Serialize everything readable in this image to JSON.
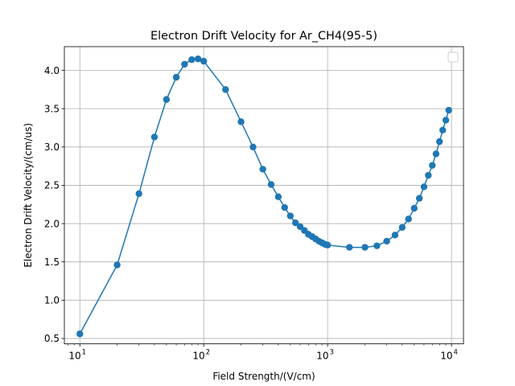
{
  "chart_data": {
    "type": "line",
    "title": "Electron Drift Velocity for Ar_CH4(95-5)",
    "xlabel": "Field Strength/(V/cm)",
    "ylabel": "Electron Drift Velocity/(cm/us)",
    "xscale": "log",
    "xlim": [
      7.5,
      12500
    ],
    "ylim": [
      0.43,
      4.31
    ],
    "grid": true,
    "legend": "top-right (empty)",
    "line_color": "#1f77b4",
    "marker": "circle",
    "x_ticks": [
      {
        "value": 10,
        "base": "10",
        "exp": "1"
      },
      {
        "value": 100,
        "base": "10",
        "exp": "2"
      },
      {
        "value": 1000,
        "base": "10",
        "exp": "3"
      },
      {
        "value": 10000,
        "base": "10",
        "exp": "4"
      }
    ],
    "y_ticks": [
      {
        "value": 0.5,
        "label": "0.5"
      },
      {
        "value": 1.0,
        "label": "1.0"
      },
      {
        "value": 1.5,
        "label": "1.5"
      },
      {
        "value": 2.0,
        "label": "2.0"
      },
      {
        "value": 2.5,
        "label": "2.5"
      },
      {
        "value": 3.0,
        "label": "3.0"
      },
      {
        "value": 3.5,
        "label": "3.5"
      },
      {
        "value": 4.0,
        "label": "4.0"
      }
    ],
    "series": [
      {
        "x": [
          10,
          20,
          30,
          40,
          50,
          60,
          70,
          80,
          90,
          100,
          150,
          200,
          250,
          300,
          350,
          400,
          450,
          500,
          550,
          600,
          650,
          700,
          750,
          800,
          850,
          900,
          950,
          1000,
          1500,
          2000,
          2500,
          3000,
          3500,
          4000,
          4500,
          5000,
          5500,
          6000,
          6500,
          7000,
          7500,
          8000,
          8500,
          9000,
          9500
        ],
        "y": [
          0.56,
          1.46,
          2.39,
          3.13,
          3.62,
          3.91,
          4.08,
          4.14,
          4.15,
          4.12,
          3.75,
          3.33,
          3.0,
          2.71,
          2.51,
          2.35,
          2.21,
          2.1,
          2.01,
          1.96,
          1.91,
          1.86,
          1.83,
          1.8,
          1.77,
          1.75,
          1.73,
          1.72,
          1.69,
          1.69,
          1.71,
          1.77,
          1.85,
          1.95,
          2.06,
          2.2,
          2.33,
          2.48,
          2.63,
          2.76,
          2.91,
          3.07,
          3.22,
          3.35,
          3.48
        ]
      }
    ]
  }
}
